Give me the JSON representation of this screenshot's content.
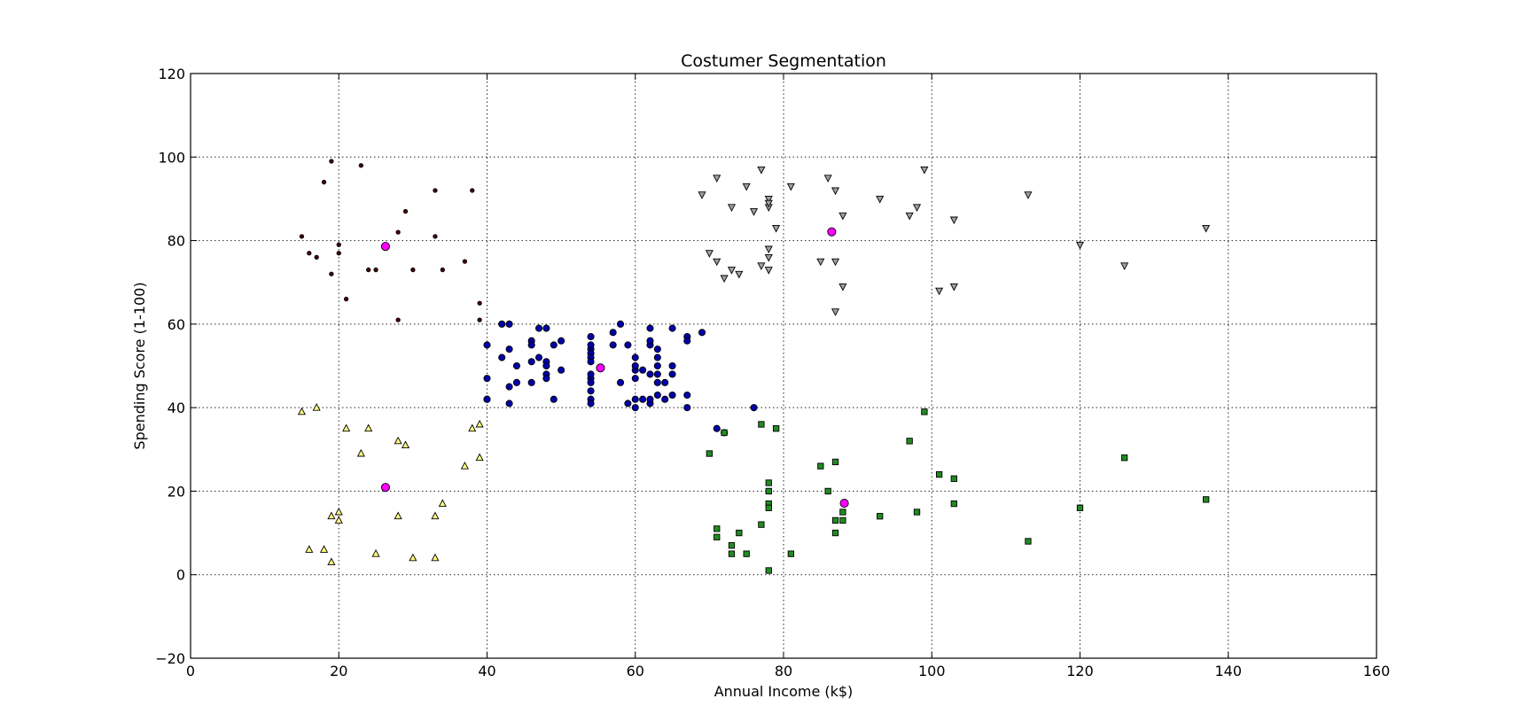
{
  "chart_data": {
    "type": "scatter",
    "title": "Costumer Segmentation",
    "xlabel": "Annual Income (k$)",
    "ylabel": "Spending Score (1-100)",
    "xlim": [
      0,
      160
    ],
    "ylim": [
      -20,
      120
    ],
    "xticks": [
      0,
      20,
      40,
      60,
      80,
      100,
      120,
      140,
      160
    ],
    "yticks": [
      -20,
      0,
      20,
      40,
      60,
      80,
      100,
      120
    ],
    "xtick_labels": [
      "0",
      "20",
      "40",
      "60",
      "80",
      "100",
      "120",
      "140",
      "160"
    ],
    "ytick_labels": [
      "−20",
      "0",
      "20",
      "40",
      "60",
      "80",
      "100",
      "120"
    ],
    "grid": true,
    "series": [
      {
        "marker": "dot",
        "color": "#4d0000",
        "points": [
          [
            15,
            81
          ],
          [
            16,
            77
          ],
          [
            17,
            76
          ],
          [
            18,
            94
          ],
          [
            19,
            99
          ],
          [
            19,
            72
          ],
          [
            20,
            79
          ],
          [
            20,
            77
          ],
          [
            21,
            66
          ],
          [
            23,
            98
          ],
          [
            24,
            73
          ],
          [
            25,
            73
          ],
          [
            28,
            82
          ],
          [
            28,
            61
          ],
          [
            29,
            87
          ],
          [
            30,
            73
          ],
          [
            33,
            92
          ],
          [
            33,
            81
          ],
          [
            34,
            73
          ],
          [
            37,
            75
          ],
          [
            38,
            92
          ],
          [
            39,
            65
          ],
          [
            39,
            61
          ]
        ]
      },
      {
        "marker": "triangle-up",
        "color": "#ffff80",
        "points": [
          [
            15,
            39
          ],
          [
            16,
            6
          ],
          [
            17,
            40
          ],
          [
            18,
            6
          ],
          [
            19,
            3
          ],
          [
            19,
            14
          ],
          [
            20,
            15
          ],
          [
            20,
            13
          ],
          [
            21,
            35
          ],
          [
            23,
            29
          ],
          [
            24,
            35
          ],
          [
            25,
            5
          ],
          [
            28,
            32
          ],
          [
            28,
            14
          ],
          [
            29,
            31
          ],
          [
            30,
            4
          ],
          [
            33,
            4
          ],
          [
            33,
            14
          ],
          [
            34,
            17
          ],
          [
            37,
            26
          ],
          [
            38,
            35
          ],
          [
            39,
            36
          ],
          [
            39,
            28
          ]
        ]
      },
      {
        "marker": "circle",
        "color": "#0000aa",
        "points": [
          [
            40,
            55
          ],
          [
            40,
            47
          ],
          [
            40,
            42
          ],
          [
            40,
            42
          ],
          [
            42,
            52
          ],
          [
            42,
            60
          ],
          [
            43,
            54
          ],
          [
            43,
            60
          ],
          [
            43,
            45
          ],
          [
            43,
            41
          ],
          [
            44,
            50
          ],
          [
            44,
            46
          ],
          [
            46,
            51
          ],
          [
            46,
            46
          ],
          [
            46,
            56
          ],
          [
            46,
            55
          ],
          [
            47,
            52
          ],
          [
            47,
            59
          ],
          [
            48,
            51
          ],
          [
            48,
            59
          ],
          [
            48,
            50
          ],
          [
            48,
            48
          ],
          [
            48,
            47
          ],
          [
            49,
            55
          ],
          [
            49,
            42
          ],
          [
            50,
            49
          ],
          [
            50,
            56
          ],
          [
            54,
            47
          ],
          [
            54,
            54
          ],
          [
            54,
            53
          ],
          [
            54,
            48
          ],
          [
            54,
            52
          ],
          [
            54,
            42
          ],
          [
            54,
            51
          ],
          [
            54,
            55
          ],
          [
            54,
            41
          ],
          [
            54,
            44
          ],
          [
            54,
            57
          ],
          [
            54,
            46
          ],
          [
            57,
            58
          ],
          [
            57,
            55
          ],
          [
            58,
            60
          ],
          [
            58,
            46
          ],
          [
            59,
            55
          ],
          [
            59,
            41
          ],
          [
            60,
            49
          ],
          [
            60,
            40
          ],
          [
            60,
            42
          ],
          [
            60,
            52
          ],
          [
            60,
            47
          ],
          [
            60,
            50
          ],
          [
            61,
            42
          ],
          [
            61,
            49
          ],
          [
            62,
            41
          ],
          [
            62,
            48
          ],
          [
            62,
            59
          ],
          [
            62,
            55
          ],
          [
            62,
            56
          ],
          [
            62,
            42
          ],
          [
            63,
            50
          ],
          [
            63,
            46
          ],
          [
            63,
            43
          ],
          [
            63,
            48
          ],
          [
            63,
            52
          ],
          [
            63,
            54
          ],
          [
            64,
            42
          ],
          [
            64,
            46
          ],
          [
            65,
            48
          ],
          [
            65,
            50
          ],
          [
            65,
            43
          ],
          [
            65,
            59
          ],
          [
            67,
            43
          ],
          [
            67,
            57
          ],
          [
            67,
            56
          ],
          [
            67,
            40
          ],
          [
            69,
            58
          ],
          [
            71,
            35
          ],
          [
            72,
            34
          ],
          [
            76,
            40
          ]
        ]
      },
      {
        "marker": "triangle-down",
        "color": "#a0a0a0",
        "points": [
          [
            69,
            91
          ],
          [
            70,
            77
          ],
          [
            71,
            95
          ],
          [
            71,
            75
          ],
          [
            72,
            71
          ],
          [
            73,
            88
          ],
          [
            73,
            73
          ],
          [
            74,
            72
          ],
          [
            75,
            93
          ],
          [
            76,
            87
          ],
          [
            77,
            97
          ],
          [
            77,
            74
          ],
          [
            78,
            90
          ],
          [
            78,
            88
          ],
          [
            78,
            89
          ],
          [
            78,
            78
          ],
          [
            78,
            73
          ],
          [
            78,
            76
          ],
          [
            79,
            83
          ],
          [
            81,
            93
          ],
          [
            85,
            75
          ],
          [
            86,
            95
          ],
          [
            87,
            63
          ],
          [
            87,
            75
          ],
          [
            87,
            92
          ],
          [
            88,
            86
          ],
          [
            88,
            69
          ],
          [
            93,
            90
          ],
          [
            97,
            86
          ],
          [
            98,
            88
          ],
          [
            99,
            97
          ],
          [
            101,
            68
          ],
          [
            103,
            85
          ],
          [
            103,
            69
          ],
          [
            113,
            91
          ],
          [
            120,
            79
          ],
          [
            126,
            74
          ],
          [
            137,
            83
          ]
        ]
      },
      {
        "marker": "square",
        "color": "#228b22",
        "points": [
          [
            70,
            29
          ],
          [
            71,
            11
          ],
          [
            71,
            9
          ],
          [
            72,
            34
          ],
          [
            73,
            5
          ],
          [
            73,
            7
          ],
          [
            74,
            10
          ],
          [
            75,
            5
          ],
          [
            77,
            12
          ],
          [
            77,
            36
          ],
          [
            78,
            22
          ],
          [
            78,
            17
          ],
          [
            78,
            20
          ],
          [
            78,
            16
          ],
          [
            78,
            1
          ],
          [
            79,
            35
          ],
          [
            81,
            5
          ],
          [
            85,
            26
          ],
          [
            86,
            20
          ],
          [
            87,
            27
          ],
          [
            87,
            13
          ],
          [
            87,
            10
          ],
          [
            88,
            13
          ],
          [
            88,
            15
          ],
          [
            93,
            14
          ],
          [
            97,
            32
          ],
          [
            98,
            15
          ],
          [
            99,
            39
          ],
          [
            101,
            24
          ],
          [
            103,
            17
          ],
          [
            103,
            23
          ],
          [
            113,
            8
          ],
          [
            120,
            16
          ],
          [
            126,
            28
          ],
          [
            137,
            18
          ]
        ]
      },
      {
        "marker": "centroid",
        "color": "#ff00ff",
        "points": [
          [
            26.3,
            78.6
          ],
          [
            26.3,
            20.9
          ],
          [
            55.3,
            49.5
          ],
          [
            86.5,
            82.1
          ],
          [
            88.2,
            17.1
          ]
        ]
      }
    ]
  }
}
